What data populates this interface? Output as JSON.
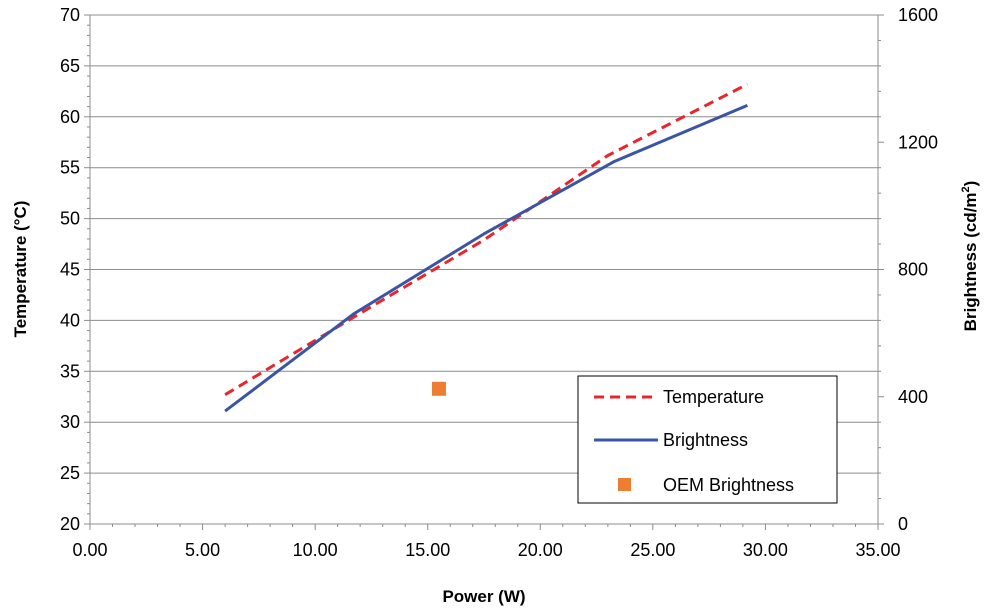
{
  "chart_data": {
    "type": "line",
    "title": "",
    "xlabel": "Power (W)",
    "ylabel": "Temperature (°C)",
    "y2label_main": "Brightness (cd/m",
    "y2label_sup": "2",
    "y2label_close": ")",
    "xlim": [
      0,
      35
    ],
    "ylim": [
      20,
      70
    ],
    "y2lim": [
      0,
      1600
    ],
    "x_ticks": [
      "0.00",
      "5.00",
      "10.00",
      "15.00",
      "20.00",
      "25.00",
      "30.00",
      "35.00"
    ],
    "y_ticks": [
      "20",
      "25",
      "30",
      "35",
      "40",
      "45",
      "50",
      "55",
      "60",
      "65",
      "70"
    ],
    "y2_ticks": [
      "0",
      "400",
      "800",
      "1200",
      "1600"
    ],
    "grid": true,
    "legend_position": "bottom-right",
    "series": [
      {
        "name": "Temperature",
        "axis": "left",
        "style": "dashed",
        "color": "#e8262b",
        "x": [
          6.0,
          11.7,
          17.5,
          23.0,
          29.2
        ],
        "y": [
          32.7,
          40.3,
          47.9,
          56.2,
          63.2
        ]
      },
      {
        "name": "Brightness",
        "axis": "right",
        "style": "solid",
        "color": "#3a55a3",
        "x": [
          6.0,
          11.7,
          17.5,
          23.3,
          29.2
        ],
        "y": [
          355,
          660,
          912,
          1140,
          1316
        ]
      },
      {
        "name": "OEM Brightness",
        "axis": "right",
        "style": "marker",
        "color": "#ed7d31",
        "x": [
          15.5
        ],
        "y": [
          425
        ]
      }
    ]
  }
}
